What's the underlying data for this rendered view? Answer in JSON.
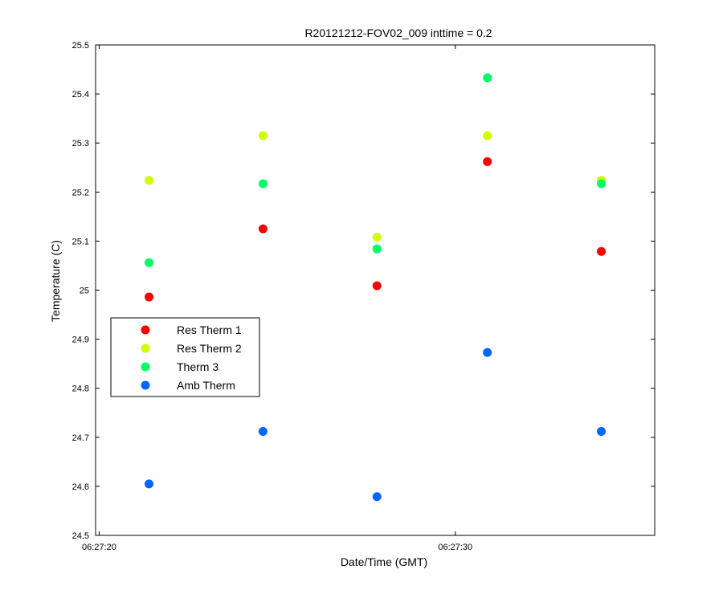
{
  "chart_data": {
    "type": "scatter",
    "title": "R20121212-FOV02_009 inttime = 0.2",
    "xlabel": "Date/Time (GMT)",
    "ylabel": "Temperature (C)",
    "xlim": [
      "06:27:19.9",
      "06:27:35.6"
    ],
    "ylim": [
      24.5,
      25.5
    ],
    "x_ticks": [
      "06:27:20",
      "06:27:30"
    ],
    "y_ticks": [
      "24.5",
      "24.6",
      "24.7",
      "24.8",
      "24.9",
      "25",
      "25.1",
      "25.2",
      "25.3",
      "25.4",
      "25.5"
    ],
    "y_tick_values": [
      24.5,
      24.6,
      24.7,
      24.8,
      24.9,
      25.0,
      25.1,
      25.2,
      25.3,
      25.4,
      25.5
    ],
    "x": [
      "06:27:21.4",
      "06:27:24.6",
      "06:27:27.8",
      "06:27:30.9",
      "06:27:34.1"
    ],
    "series": [
      {
        "name": "Res Therm 1",
        "color": "#ff0000",
        "values": [
          24.986,
          25.125,
          25.009,
          25.262,
          25.079
        ]
      },
      {
        "name": "Res Therm 2",
        "color": "#ccff00",
        "values": [
          25.224,
          25.315,
          25.108,
          25.315,
          25.224
        ]
      },
      {
        "name": "Therm 3",
        "color": "#00ff66",
        "values": [
          25.056,
          25.217,
          25.084,
          25.433,
          25.217
        ]
      },
      {
        "name": "Amb Therm",
        "color": "#0066ff",
        "values": [
          24.605,
          24.712,
          24.579,
          24.873,
          24.712
        ]
      }
    ],
    "legend_position": "left-middle",
    "grid": false
  }
}
